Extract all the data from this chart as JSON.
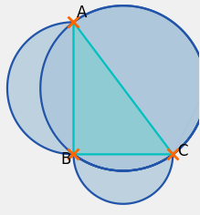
{
  "triangle": {
    "A": [
      0.0,
      1.0
    ],
    "B": [
      0.0,
      0.0
    ],
    "C": [
      0.75,
      0.0
    ]
  },
  "triangle_color": "#7ecece",
  "triangle_alpha": 0.65,
  "lune_color": "#8fb8d8",
  "lune_alpha": 0.7,
  "lune_fill_color": "#a8c4d8",
  "circle_edge_color": "#2255aa",
  "circle_edge_width": 1.6,
  "triangle_edge_color": "#00c0c0",
  "triangle_edge_width": 1.6,
  "marker_color": "#ff6600",
  "marker_size": 9,
  "label_fontsize": 12,
  "label_color": "black",
  "background_color": "#f0f0f0"
}
